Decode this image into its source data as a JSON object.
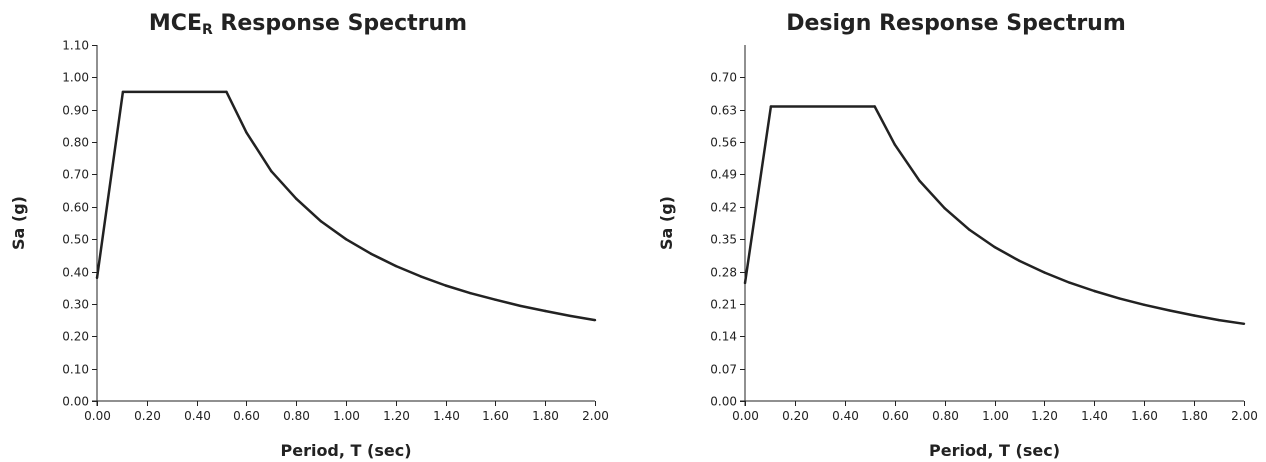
{
  "chart_data": [
    {
      "type": "line",
      "title": "MCE",
      "title_subscript": "R",
      "title_rest": " Response Spectrum",
      "xlabel": "Period, T (sec)",
      "ylabel": "Sa (g)",
      "xlim": [
        0,
        2.0
      ],
      "ylim": [
        0,
        1.1
      ],
      "xticks": [
        "0.00",
        "0.20",
        "0.40",
        "0.60",
        "0.80",
        "1.00",
        "1.20",
        "1.40",
        "1.60",
        "1.80",
        "2.00"
      ],
      "yticks": [
        "0.00",
        "0.10",
        "0.20",
        "0.30",
        "0.40",
        "0.50",
        "0.60",
        "0.70",
        "0.80",
        "0.90",
        "1.00",
        "1.10"
      ],
      "grid": false,
      "series": [
        {
          "x": [
            0.0,
            0.104,
            0.52,
            0.6,
            0.7,
            0.8,
            0.9,
            1.0,
            1.1,
            1.2,
            1.3,
            1.4,
            1.5,
            1.6,
            1.7,
            1.8,
            1.9,
            2.0
          ],
          "y": [
            0.38,
            0.955,
            0.955,
            0.83,
            0.71,
            0.625,
            0.555,
            0.5,
            0.455,
            0.417,
            0.385,
            0.357,
            0.333,
            0.313,
            0.294,
            0.278,
            0.263,
            0.25
          ]
        }
      ]
    },
    {
      "type": "line",
      "title": "Design Response Spectrum",
      "title_subscript": "",
      "title_rest": "",
      "xlabel": "Period, T (sec)",
      "ylabel": "Sa (g)",
      "xlim": [
        0,
        2.0
      ],
      "ylim": [
        0,
        0.77
      ],
      "xticks": [
        "0.00",
        "0.20",
        "0.40",
        "0.60",
        "0.80",
        "1.00",
        "1.20",
        "1.40",
        "1.60",
        "1.80",
        "2.00"
      ],
      "yticks": [
        "0.00",
        "0.07",
        "0.14",
        "0.21",
        "0.28",
        "0.35",
        "0.42",
        "0.49",
        "0.56",
        "0.63",
        "0.70"
      ],
      "grid": false,
      "series": [
        {
          "x": [
            0.0,
            0.104,
            0.52,
            0.6,
            0.7,
            0.8,
            0.9,
            1.0,
            1.1,
            1.2,
            1.3,
            1.4,
            1.5,
            1.6,
            1.7,
            1.8,
            1.9,
            2.0
          ],
          "y": [
            0.255,
            0.637,
            0.637,
            0.555,
            0.476,
            0.417,
            0.37,
            0.333,
            0.303,
            0.278,
            0.256,
            0.238,
            0.222,
            0.208,
            0.196,
            0.185,
            0.175,
            0.167
          ]
        }
      ]
    }
  ]
}
